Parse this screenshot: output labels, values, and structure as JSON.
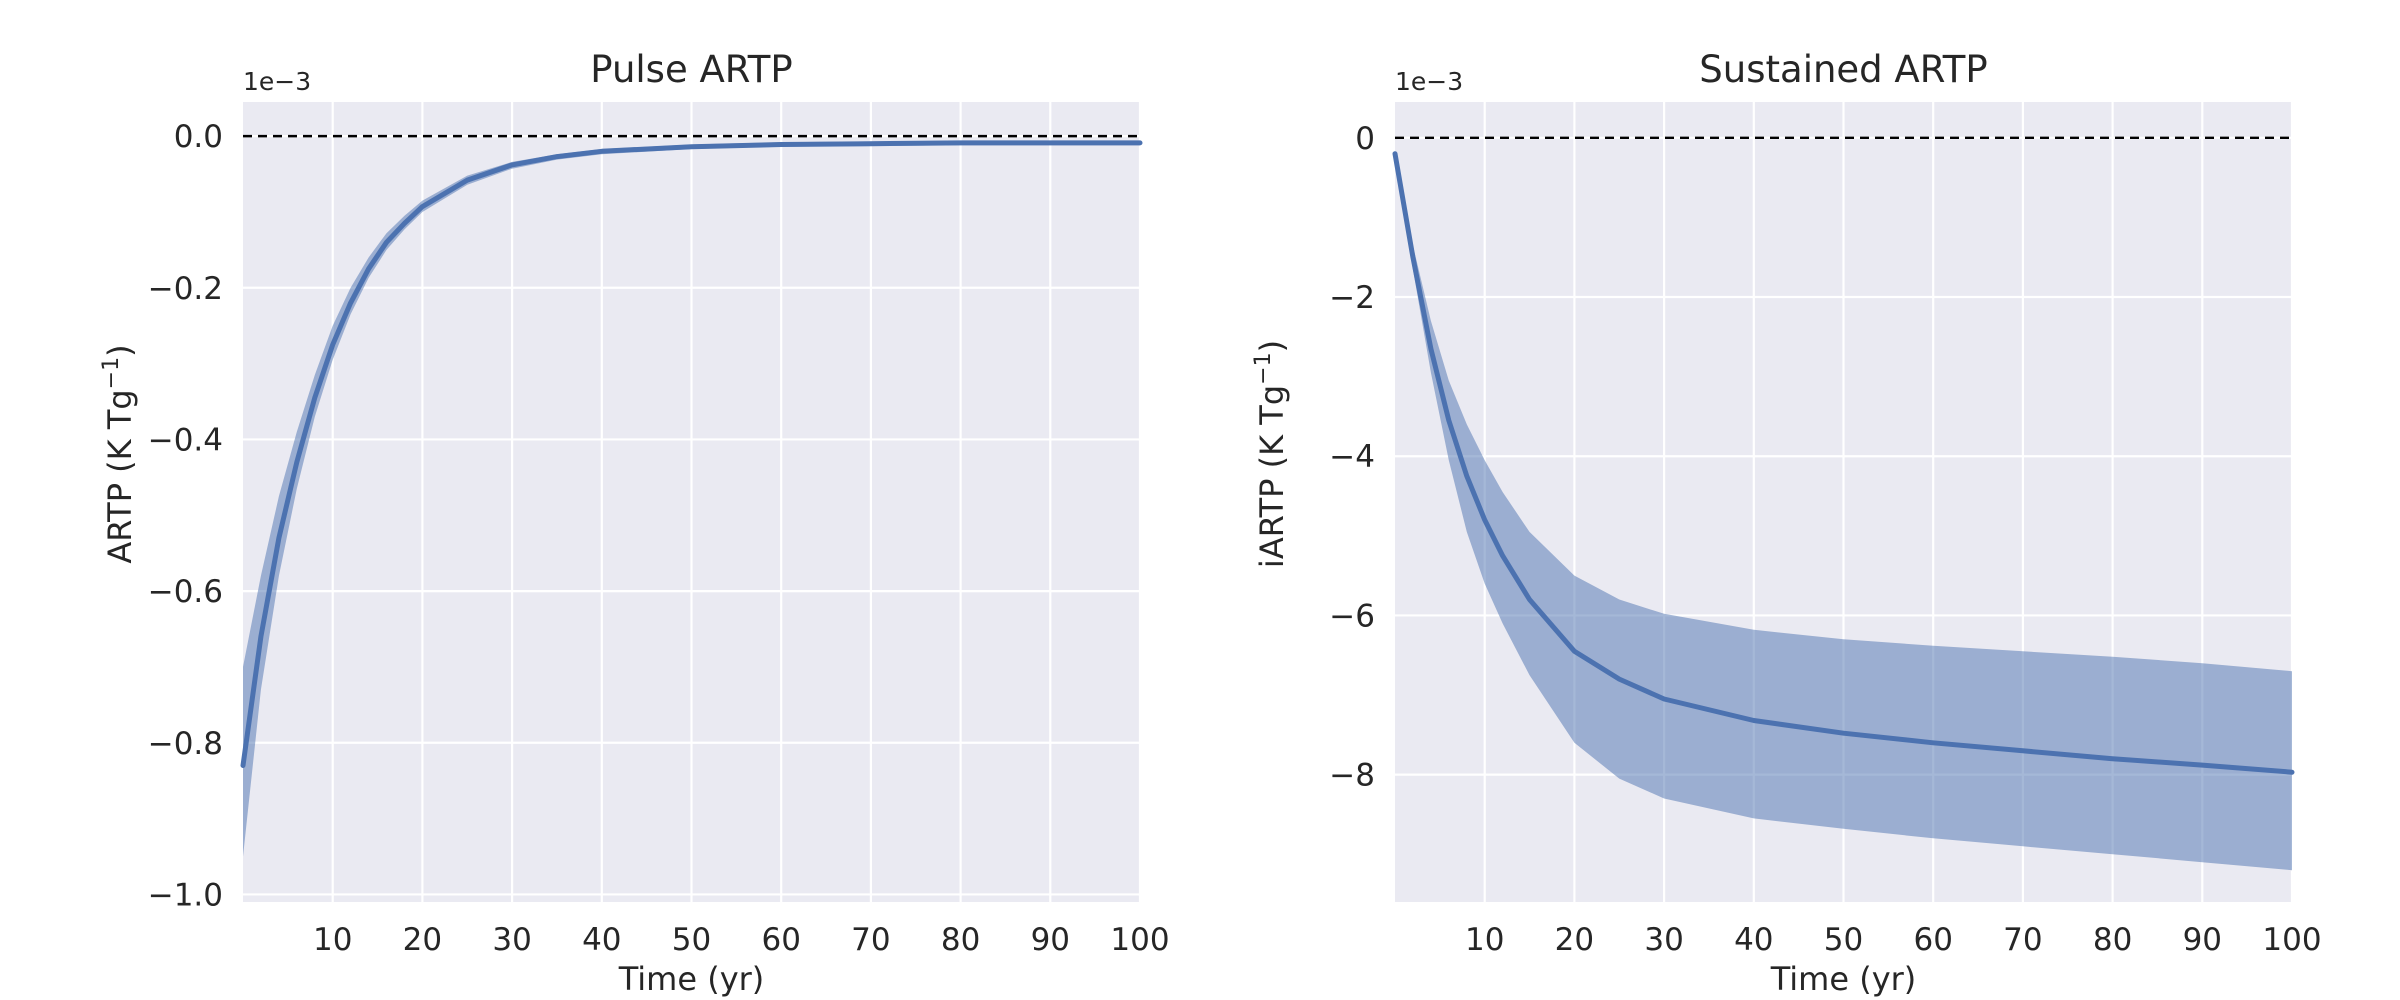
{
  "chart_data": [
    {
      "type": "line",
      "title": "Pulse ARTP",
      "xlabel": "Time (yr)",
      "ylabel": "ARTP (K Tg",
      "ylabel_sup": "−1",
      "ylabel_end": ")",
      "offset_text": "1e−3",
      "xlim": [
        0,
        100
      ],
      "ylim": [
        -1.01,
        0.045
      ],
      "xticks": [
        10,
        20,
        30,
        40,
        50,
        60,
        70,
        80,
        90,
        100
      ],
      "xtick_labels": [
        "10",
        "20",
        "30",
        "40",
        "50",
        "60",
        "70",
        "80",
        "90",
        "100"
      ],
      "yticks": [
        0.0,
        -0.2,
        -0.4,
        -0.6,
        -0.8,
        -1.0
      ],
      "ytick_labels": [
        "0.0",
        "−0.2",
        "−0.4",
        "−0.6",
        "−0.8",
        "−1.0"
      ],
      "reference_line": 0,
      "grid": true,
      "series": [
        {
          "x": [
            0,
            2,
            4,
            6,
            8,
            10,
            12,
            14,
            16,
            18,
            20,
            25,
            30,
            35,
            40,
            50,
            60,
            70,
            80,
            90,
            100
          ],
          "y": [
            -0.83,
            -0.66,
            -0.53,
            -0.43,
            -0.345,
            -0.275,
            -0.22,
            -0.175,
            -0.14,
            -0.115,
            -0.093,
            -0.058,
            -0.038,
            -0.027,
            -0.02,
            -0.014,
            -0.011,
            -0.01,
            -0.009,
            -0.009,
            -0.009
          ],
          "lower": [
            -0.95,
            -0.73,
            -0.58,
            -0.465,
            -0.37,
            -0.295,
            -0.235,
            -0.187,
            -0.15,
            -0.123,
            -0.1,
            -0.064,
            -0.043,
            -0.031,
            -0.024,
            -0.017,
            -0.014,
            -0.013,
            -0.012,
            -0.012,
            -0.012
          ],
          "upper": [
            -0.7,
            -0.58,
            -0.475,
            -0.39,
            -0.315,
            -0.25,
            -0.2,
            -0.16,
            -0.128,
            -0.105,
            -0.085,
            -0.052,
            -0.034,
            -0.024,
            -0.017,
            -0.011,
            -0.008,
            -0.007,
            -0.006,
            -0.006,
            -0.006
          ],
          "color": "#4c72b0",
          "band_color": "#4c72b0"
        }
      ]
    },
    {
      "type": "line",
      "title": "Sustained ARTP",
      "xlabel": "Time (yr)",
      "ylabel": "iARTP (K Tg",
      "ylabel_sup": "−1",
      "ylabel_end": ")",
      "offset_text": "1e−3",
      "xlim": [
        0,
        100
      ],
      "ylim": [
        -9.6,
        0.45
      ],
      "xticks": [
        10,
        20,
        30,
        40,
        50,
        60,
        70,
        80,
        90,
        100
      ],
      "xtick_labels": [
        "10",
        "20",
        "30",
        "40",
        "50",
        "60",
        "70",
        "80",
        "90",
        "100"
      ],
      "yticks": [
        0,
        -2,
        -4,
        -6,
        -8
      ],
      "ytick_labels": [
        "0",
        "−2",
        "−4",
        "−6",
        "−8"
      ],
      "reference_line": 0,
      "grid": true,
      "series": [
        {
          "x": [
            0,
            2,
            4,
            6,
            8,
            10,
            12,
            15,
            20,
            25,
            30,
            40,
            50,
            60,
            70,
            80,
            90,
            100
          ],
          "y": [
            -0.2,
            -1.5,
            -2.65,
            -3.55,
            -4.25,
            -4.8,
            -5.25,
            -5.8,
            -6.45,
            -6.8,
            -7.05,
            -7.32,
            -7.48,
            -7.6,
            -7.7,
            -7.8,
            -7.88,
            -7.97
          ],
          "lower": [
            -0.2,
            -1.65,
            -2.95,
            -4.05,
            -4.95,
            -5.6,
            -6.1,
            -6.75,
            -7.6,
            -8.05,
            -8.3,
            -8.55,
            -8.68,
            -8.8,
            -8.9,
            -9.0,
            -9.1,
            -9.2
          ],
          "upper": [
            -0.2,
            -1.35,
            -2.3,
            -3.05,
            -3.6,
            -4.05,
            -4.45,
            -4.95,
            -5.5,
            -5.8,
            -5.98,
            -6.18,
            -6.3,
            -6.38,
            -6.45,
            -6.52,
            -6.6,
            -6.7
          ],
          "color": "#4c72b0",
          "band_color": "#4c72b0"
        }
      ]
    }
  ]
}
